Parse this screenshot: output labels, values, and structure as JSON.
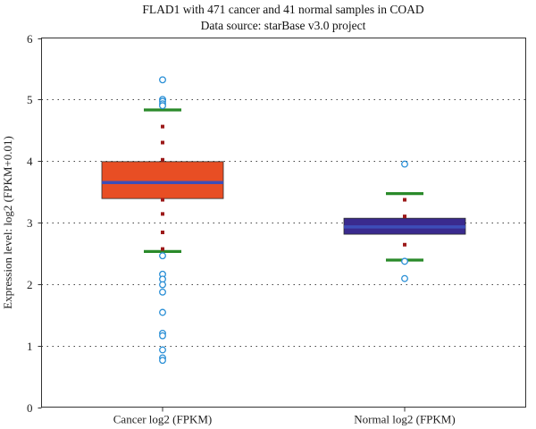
{
  "chart_data": {
    "type": "box",
    "title": "FLAD1 with 471 cancer and 41 normal samples in COAD",
    "subtitle": "Data source: starBase v3.0 project",
    "ylabel": "Expression level: log2 (FPKM+0.01)",
    "xlabel": "",
    "ylim": [
      0,
      6
    ],
    "yticks": [
      0,
      1,
      2,
      3,
      4,
      5,
      6
    ],
    "grid": "horizontal-dotted",
    "categories": [
      "Cancer log2 (FPKM)",
      "Normal log2 (FPKM)"
    ],
    "series": [
      {
        "category": "Cancer log2 (FPKM)",
        "color": "#e84e24",
        "median": 3.65,
        "q1": 3.39,
        "q3": 3.99,
        "whisker_low": 2.53,
        "whisker_high": 4.83,
        "inner_points": [
          4.56,
          4.3,
          4.02,
          3.37,
          3.14,
          2.84,
          2.57
        ],
        "outliers": [
          5.32,
          5.0,
          4.97,
          4.93,
          4.9,
          2.46,
          2.16,
          2.08,
          1.99,
          1.87,
          1.54,
          1.2,
          1.16,
          0.93,
          0.8,
          0.76
        ]
      },
      {
        "category": "Normal log2 (FPKM)",
        "color": "#3a2a8e",
        "median": 2.93,
        "q1": 2.81,
        "q3": 3.07,
        "whisker_low": 2.39,
        "whisker_high": 3.47,
        "inner_points": [
          3.37,
          3.1,
          2.64
        ],
        "outliers": [
          3.95,
          2.37,
          2.09
        ]
      }
    ],
    "colors": {
      "median_line": "#3d4db8",
      "whisker": "#2a8a2a",
      "inner_point": "#9c1a1a",
      "outlier": "#2a8fd6"
    }
  }
}
